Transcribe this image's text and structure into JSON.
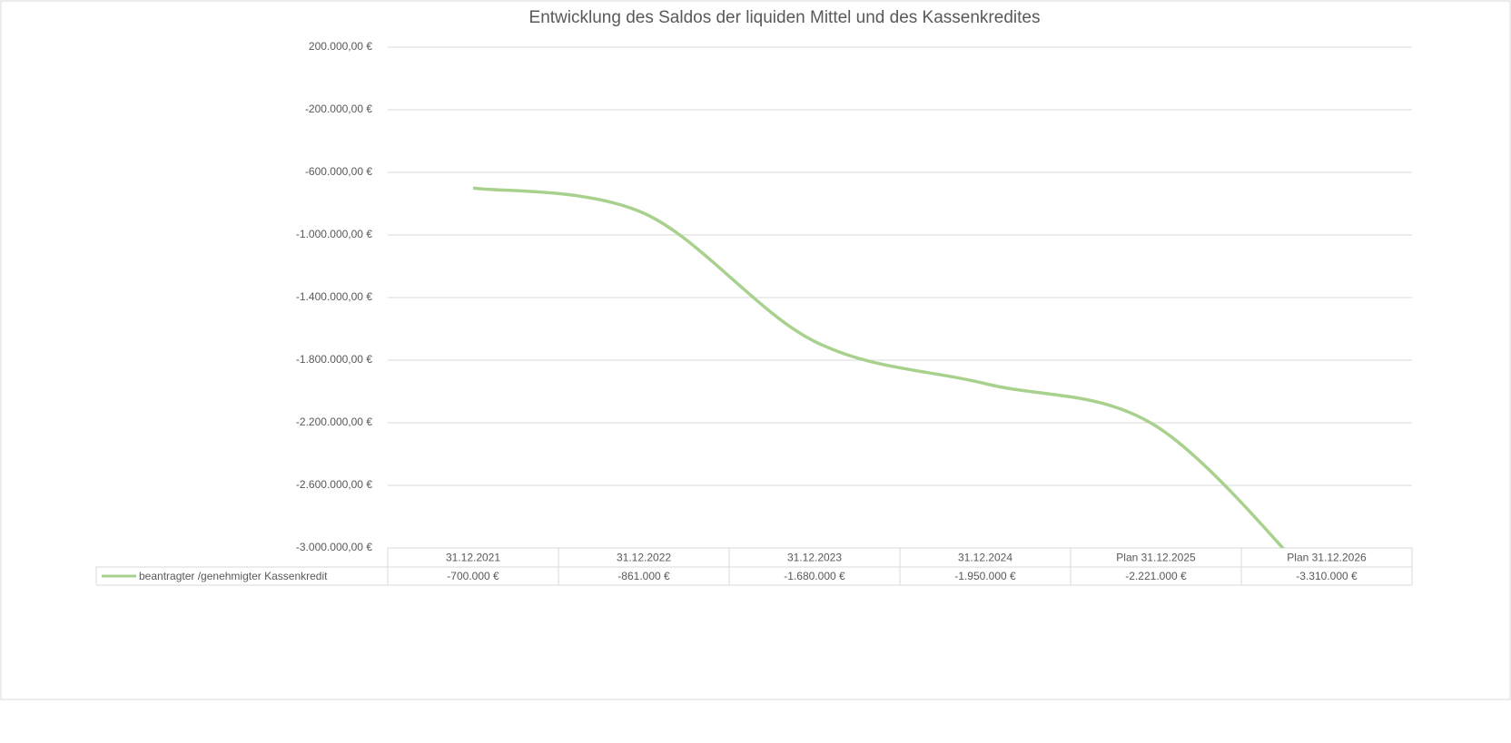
{
  "chart_data": {
    "type": "line",
    "title": "Entwicklung des Saldos der liquiden Mittel  und des Kassenkredites",
    "categories": [
      "31.12.2021",
      "31.12.2022",
      "31.12.2023",
      "31.12.2024",
      "Plan 31.12.2025",
      "Plan 31.12.2026"
    ],
    "series": [
      {
        "name": "beantragter /genehmigter Kassenkredit",
        "color": "#a9d18e",
        "values": [
          -700000,
          -861000,
          -1680000,
          -1950000,
          -2221000,
          -3310000
        ],
        "value_labels": [
          "-700.000 €",
          "-861.000 €",
          "-1.680.000 €",
          "-1.950.000 €",
          "-2.221.000 €",
          "-3.310.000 €"
        ]
      }
    ],
    "ylim": [
      -3000000,
      200000
    ],
    "yticks": [
      {
        "value": 200000,
        "label": "200.000,00 €"
      },
      {
        "value": -200000,
        "label": "-200.000,00 €"
      },
      {
        "value": -600000,
        "label": "-600.000,00 €"
      },
      {
        "value": -1000000,
        "label": "-1.000.000,00 €"
      },
      {
        "value": -1400000,
        "label": "-1.400.000,00 €"
      },
      {
        "value": -1800000,
        "label": "-1.800.000,00 €"
      },
      {
        "value": -2200000,
        "label": "-2.200.000,00 €"
      },
      {
        "value": -2600000,
        "label": "-2.600.000,00 €"
      },
      {
        "value": -3000000,
        "label": "-3.000.000,00 €"
      }
    ],
    "grid": true,
    "smooth": true,
    "data_table": true
  }
}
